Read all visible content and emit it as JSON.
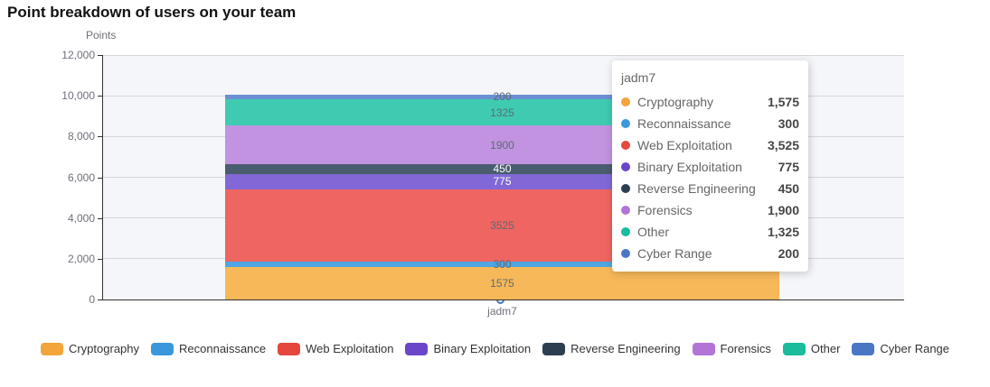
{
  "page": {
    "title": "Point breakdown of users on your team",
    "y_axis_title": "Points",
    "x_label": "jadm7"
  },
  "tooltip": {
    "title": "jadm7"
  },
  "chart_data": {
    "type": "bar",
    "stacked": true,
    "orientation": "vertical",
    "title": "Point breakdown of users on your team",
    "ylabel": "Points",
    "xlabel": "",
    "categories": [
      "jadm7"
    ],
    "ylim": [
      0,
      12000
    ],
    "y_tick_step": 2000,
    "y_tick_labels": [
      "0",
      "2,000",
      "4,000",
      "6,000",
      "8,000",
      "10,000",
      "12,000"
    ],
    "grid": true,
    "legend_position": "bottom",
    "plot_background": "#f4f6fa",
    "gridline_color": "#d4d6dc",
    "total": 10050,
    "series": [
      {
        "name": "Cryptography",
        "values": [
          1575
        ],
        "formatted": "1,575",
        "bar_label": "1575",
        "color": "#f3a43b",
        "bar_color": "#f7b859",
        "label_color": "#5e6a75"
      },
      {
        "name": "Reconnaissance",
        "values": [
          300
        ],
        "formatted": "300",
        "bar_label": "300",
        "color": "#3b97db",
        "bar_color": "#4fa6e2",
        "label_color": "#5e6a75"
      },
      {
        "name": "Web Exploitation",
        "values": [
          3525
        ],
        "formatted": "3,525",
        "bar_label": "3525",
        "color": "#e5473c",
        "bar_color": "#ee6561",
        "label_color": "#5e6a75"
      },
      {
        "name": "Binary Exploitation",
        "values": [
          775
        ],
        "formatted": "775",
        "bar_label": "775",
        "color": "#6a47c9",
        "bar_color": "#8168d6",
        "label_color": "#ffffff"
      },
      {
        "name": "Reverse Engineering",
        "values": [
          450
        ],
        "formatted": "450",
        "bar_label": "450",
        "color": "#2c3e50",
        "bar_color": "#4a5c70",
        "label_color": "#ffffff"
      },
      {
        "name": "Forensics",
        "values": [
          1900
        ],
        "formatted": "1,900",
        "bar_label": "1900",
        "color": "#b374d6",
        "bar_color": "#c193e0",
        "label_color": "#5e6a75"
      },
      {
        "name": "Other",
        "values": [
          1325
        ],
        "formatted": "1,325",
        "bar_label": "1325",
        "color": "#1abc9c",
        "bar_color": "#3fcbb1",
        "label_color": "#5e6a75"
      },
      {
        "name": "Cyber Range",
        "values": [
          200
        ],
        "formatted": "200",
        "bar_label": "200",
        "color": "#4a77c4",
        "bar_color": "#6b8fd3",
        "label_color": "#5e6a75"
      }
    ]
  }
}
